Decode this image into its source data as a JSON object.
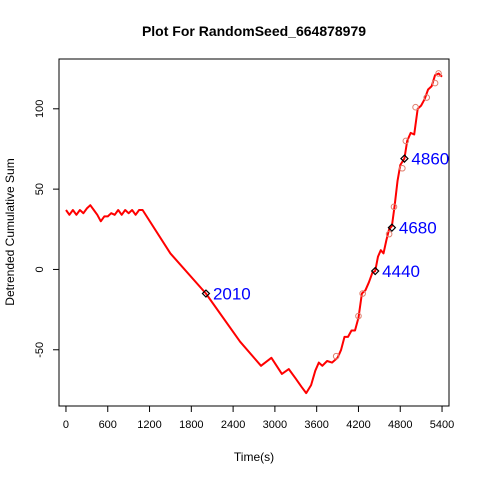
{
  "chart_data": {
    "type": "line",
    "title": "Plot For RandomSeed_664878979",
    "xlabel": "Time(s)",
    "ylabel": "Detrended Cumulative Sum",
    "xlim": [
      -100,
      5500
    ],
    "ylim": [
      -85,
      131
    ],
    "xticks": [
      0,
      600,
      1200,
      1800,
      2400,
      3000,
      3600,
      4200,
      4800,
      5400
    ],
    "yticks": [
      -50,
      0,
      50,
      100
    ],
    "colors": {
      "line": "#ff0000",
      "circles": "#e08070",
      "marker": "#000000",
      "annotation": "#0000ff"
    },
    "series": [
      {
        "x": [
          0,
          50,
          100,
          150,
          200,
          250,
          300,
          350,
          400,
          450,
          500,
          550,
          600,
          650,
          700,
          750,
          800,
          850,
          900,
          950,
          1000,
          1050,
          1100,
          1500,
          2010,
          2500,
          2800,
          2950,
          3100,
          3200,
          3300,
          3380,
          3450,
          3520,
          3580,
          3630,
          3680,
          3750,
          3820,
          3900,
          3950,
          4000,
          4050,
          4100,
          4150,
          4200,
          4250,
          4300,
          4350,
          4400,
          4440,
          4480,
          4520,
          4560,
          4600,
          4640,
          4680,
          4720,
          4760,
          4800,
          4860,
          4900,
          4950,
          5000,
          5050,
          5100,
          5150,
          5200,
          5250,
          5300,
          5350,
          5400
        ],
        "y": [
          37,
          34,
          37,
          34,
          37,
          35,
          38,
          40,
          37,
          34,
          30,
          33,
          33,
          35,
          34,
          37,
          34,
          37,
          35,
          37,
          34,
          37,
          37,
          10,
          -15,
          -45,
          -60,
          -55,
          -65,
          -62,
          -68,
          -73,
          -77,
          -72,
          -63,
          -58,
          -60,
          -57,
          -58,
          -55,
          -50,
          -42,
          -42,
          -38,
          -38,
          -30,
          -15,
          -13,
          -8,
          -2,
          -1,
          8,
          12,
          10,
          18,
          25,
          27,
          40,
          55,
          65,
          69,
          80,
          85,
          84,
          100,
          102,
          106,
          112,
          114,
          121,
          122,
          120
        ]
      }
    ],
    "circles": {
      "x": [
        3880,
        4200,
        4260,
        4640,
        4710,
        4830,
        4880,
        5020,
        5180,
        5300,
        5350
      ],
      "y": [
        -54,
        -29,
        -15,
        22,
        39,
        63,
        80,
        101,
        107,
        116,
        122
      ]
    },
    "annotations": [
      {
        "label": "2010",
        "x": 2010,
        "y": -15
      },
      {
        "label": "4440",
        "x": 4440,
        "y": -1
      },
      {
        "label": "4680",
        "x": 4680,
        "y": 26
      },
      {
        "label": "4860",
        "x": 4860,
        "y": 69
      }
    ]
  }
}
